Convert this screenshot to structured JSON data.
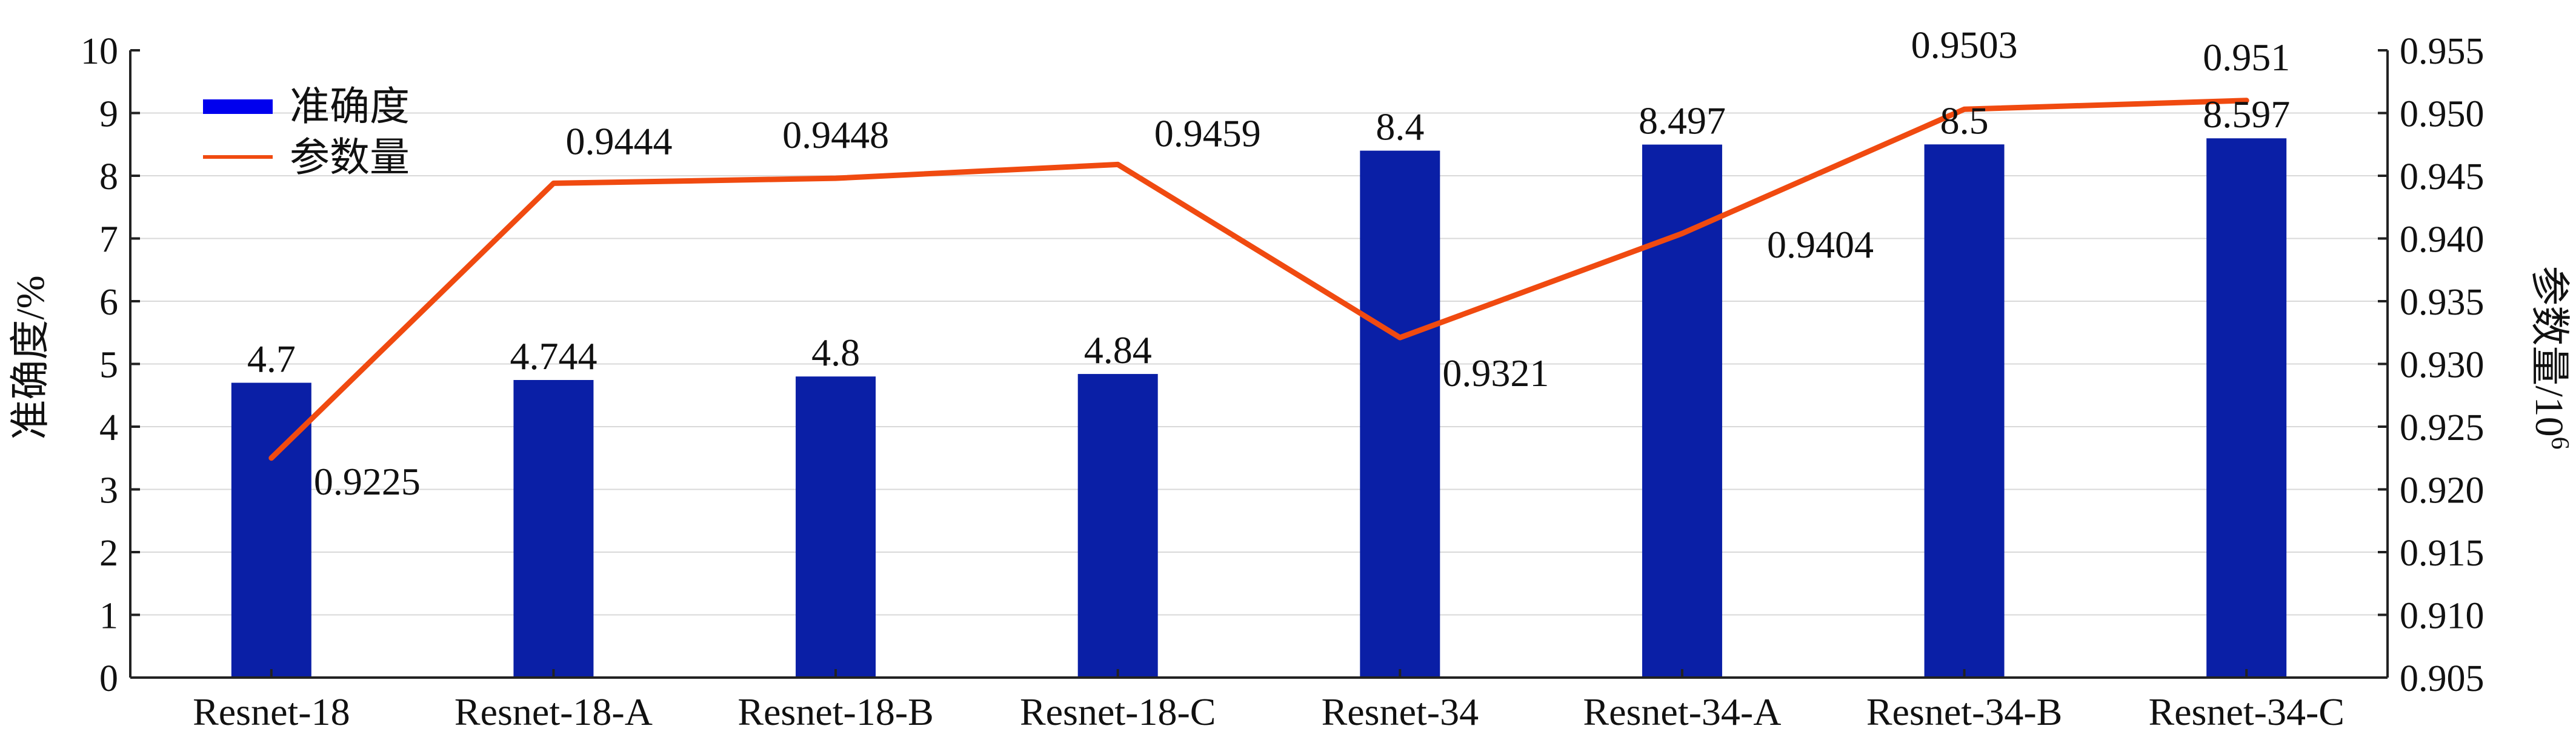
{
  "chart_data": {
    "type": "bar",
    "categories": [
      "Resnet-18",
      "Resnet-18-A",
      "Resnet-18-B",
      "Resnet-18-C",
      "Resnet-34",
      "Resnet-34-A",
      "Resnet-34-B",
      "Resnet-34-C"
    ],
    "series": [
      {
        "name": "准确度",
        "type": "bar",
        "axis": "left",
        "color": "#0a1fa6",
        "values": [
          4.7,
          4.744,
          4.8,
          4.84,
          8.4,
          8.497,
          8.5,
          8.597
        ],
        "labels": [
          "4.7",
          "4.744",
          "4.8",
          "4.84",
          "8.4",
          "8.497",
          "8.5",
          "8.597"
        ]
      },
      {
        "name": "参数量",
        "type": "line",
        "axis": "right",
        "color": "#f04a10",
        "values": [
          0.9225,
          0.9444,
          0.9448,
          0.9459,
          0.9321,
          0.9404,
          0.9503,
          0.951
        ],
        "labels": [
          "0.9225",
          "0.9444",
          "0.9448",
          "0.9459",
          "0.9321",
          "0.9404",
          "0.9503",
          "0.951"
        ]
      }
    ],
    "y_left": {
      "label_main": "准确度",
      "label_unit": "/%",
      "ylim": [
        0,
        10
      ],
      "ticks": [
        "0",
        "1",
        "2",
        "3",
        "4",
        "5",
        "6",
        "7",
        "8",
        "9",
        "10"
      ]
    },
    "y_right": {
      "label_main": "参数量",
      "label_unit": "/10",
      "label_exp": "6",
      "ylim": [
        0.905,
        0.955
      ],
      "ticks": [
        "0.905",
        "0.910",
        "0.915",
        "0.920",
        "0.925",
        "0.930",
        "0.935",
        "0.940",
        "0.945",
        "0.950",
        "0.955"
      ]
    },
    "grid": true,
    "legend": {
      "position": "top-left",
      "entries": [
        "准确度",
        "参数量"
      ]
    }
  }
}
